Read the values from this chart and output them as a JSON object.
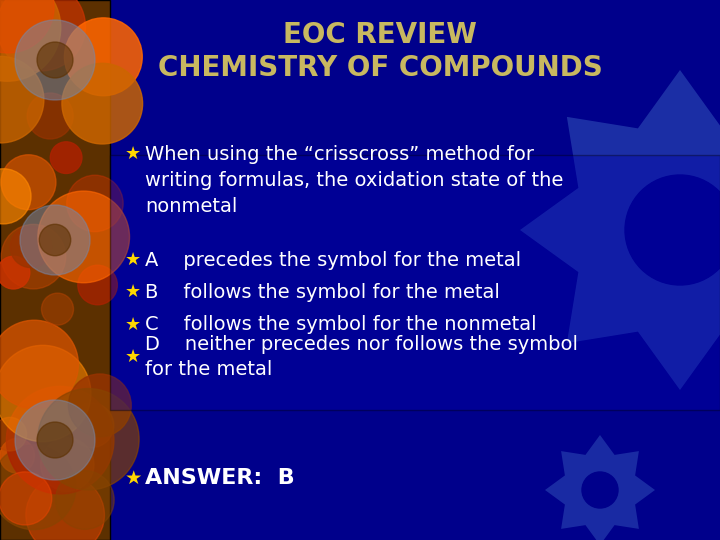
{
  "title_line1": "EOC REVIEW",
  "title_line2": "CHEMISTRY OF COMPOUNDS",
  "title_color": "#C8B860",
  "bg_color": "#00008B",
  "bullet_color": "#FFD700",
  "text_color": "#FFFFFF",
  "bullet_char": "®",
  "bullet_items_main": "When using the “crisscross” method for\nwriting formulas, the oxidation state of the\nnonmetal",
  "bullet_items_abc": [
    [
      "A",
      "precedes the symbol for the metal"
    ],
    [
      "B",
      "follows the symbol for the metal"
    ],
    [
      "C",
      "follows the symbol for the nonmetal"
    ],
    [
      "D",
      "neither precedes nor follows the symbol\nfor the metal"
    ]
  ],
  "answer_label": "ANSWER:  B",
  "title_fontsize": 20,
  "body_fontsize": 14,
  "answer_fontsize": 16,
  "gear_color": "#3344AA",
  "left_panel_color": "#5C3000"
}
